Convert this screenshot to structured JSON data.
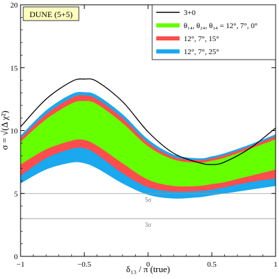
{
  "chart_data": {
    "type": "area",
    "badge": "DUNE (5+5)",
    "xlabel": "δ₁₃ / π (true)",
    "ylabel": "σ = √(Δ χ²)",
    "xlim": [
      -1,
      1
    ],
    "ylim": [
      0,
      20
    ],
    "x_ticks": [
      -1,
      -0.5,
      0,
      0.5,
      1
    ],
    "y_ticks": [
      0,
      5,
      10,
      15,
      20
    ],
    "x_tick_labels": [
      "−1",
      "−0.5",
      "0",
      "0.5",
      "1"
    ],
    "y_tick_labels": [
      "0",
      "5",
      "10",
      "15",
      "20"
    ],
    "reference_lines": [
      {
        "y": 5,
        "label": "5σ"
      },
      {
        "y": 3,
        "label": "3σ"
      }
    ],
    "legend_position": "top-right",
    "series": [
      {
        "name": "3+0",
        "kind": "line",
        "color": "#000000",
        "x": [
          -1,
          -0.8,
          -0.6,
          -0.5,
          -0.4,
          -0.2,
          0,
          0.2,
          0.4,
          0.5,
          0.6,
          0.8,
          1
        ],
        "y": [
          10.3,
          12.5,
          13.9,
          14.1,
          13.9,
          12.3,
          9.9,
          8.2,
          7.45,
          7.3,
          7.5,
          8.6,
          10.2
        ]
      },
      {
        "name": "12°, 7°, 25°",
        "kind": "band",
        "color": "#1aa8ee",
        "x": [
          -1,
          -0.8,
          -0.6,
          -0.5,
          -0.4,
          -0.2,
          0,
          0.2,
          0.4,
          0.5,
          0.6,
          0.8,
          1
        ],
        "upper": [
          9.6,
          11.6,
          12.9,
          13.05,
          12.8,
          11.3,
          9.3,
          8.1,
          7.8,
          7.95,
          8.2,
          8.9,
          9.7
        ],
        "lower": [
          5.8,
          6.9,
          7.45,
          7.4,
          7.0,
          5.8,
          4.9,
          4.6,
          4.7,
          4.85,
          5.0,
          5.3,
          5.6
        ]
      },
      {
        "name": "12°, 7°, 15°",
        "kind": "band",
        "color": "#ff4d4d",
        "x": [
          -1,
          -0.8,
          -0.6,
          -0.5,
          -0.4,
          -0.2,
          0,
          0.2,
          0.4,
          0.5,
          0.6,
          0.8,
          1
        ],
        "upper": [
          9.4,
          11.3,
          12.6,
          12.8,
          12.5,
          11.0,
          9.05,
          7.9,
          7.65,
          7.8,
          8.05,
          8.75,
          9.55
        ],
        "lower": [
          6.4,
          7.8,
          8.55,
          8.6,
          8.1,
          6.6,
          5.5,
          5.15,
          5.2,
          5.3,
          5.5,
          5.9,
          6.2
        ]
      },
      {
        "name": "θ₁₄, θ₂₄, θ₃₄ = 12°, 7°, 0°",
        "kind": "band",
        "color": "#66ff00",
        "x": [
          -1,
          -0.8,
          -0.6,
          -0.5,
          -0.4,
          -0.2,
          0,
          0.2,
          0.4,
          0.5,
          0.6,
          0.8,
          1
        ],
        "upper": [
          9.1,
          10.9,
          12.15,
          12.35,
          12.1,
          10.6,
          8.75,
          7.7,
          7.45,
          7.6,
          7.85,
          8.55,
          9.3
        ],
        "lower": [
          7.3,
          8.5,
          9.2,
          9.25,
          8.8,
          7.4,
          6.1,
          5.6,
          5.6,
          5.75,
          5.9,
          6.4,
          6.9
        ]
      }
    ],
    "legend": [
      {
        "label": "3+0",
        "color": "#000000",
        "kind": "line"
      },
      {
        "label": "θ₁₄, θ₂₄, θ₃₄ = 12°, 7°, 0°",
        "color": "#66ff00",
        "kind": "band"
      },
      {
        "label": "12°, 7°, 15°",
        "color": "#ff4d4d",
        "kind": "band"
      },
      {
        "label": "12°, 7°, 25°",
        "color": "#1aa8ee",
        "kind": "band"
      }
    ]
  }
}
